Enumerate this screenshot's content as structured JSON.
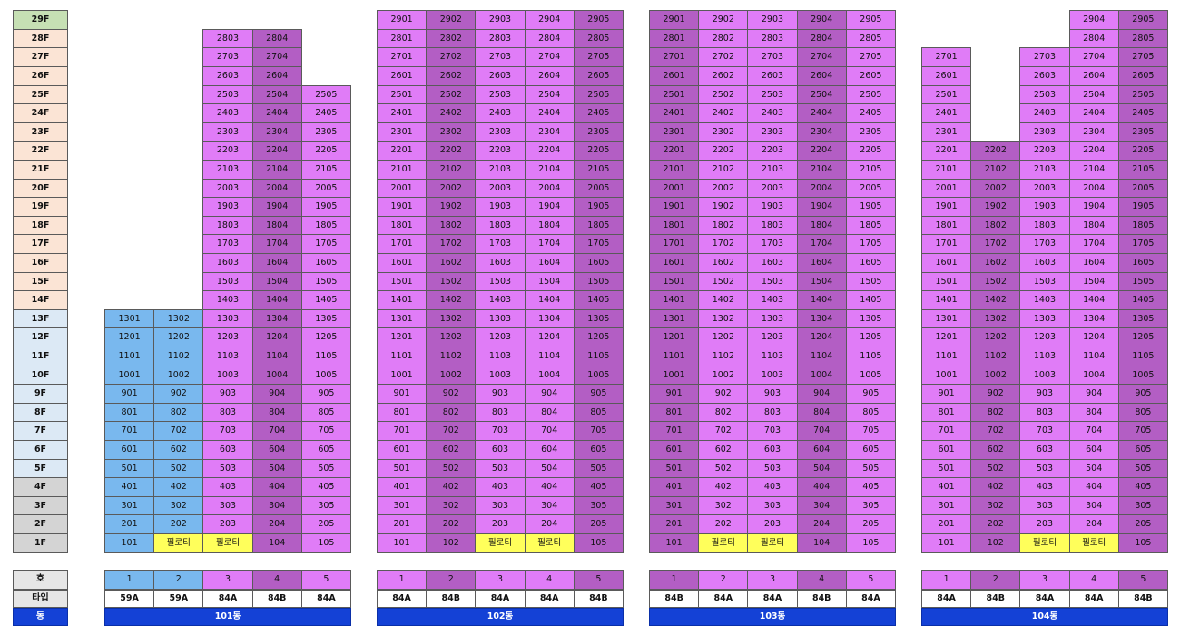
{
  "floors": [
    "1F",
    "2F",
    "3F",
    "4F",
    "5F",
    "6F",
    "7F",
    "8F",
    "9F",
    "10F",
    "11F",
    "12F",
    "13F",
    "14F",
    "15F",
    "16F",
    "17F",
    "18F",
    "19F",
    "20F",
    "21F",
    "22F",
    "23F",
    "24F",
    "25F",
    "26F",
    "27F",
    "28F",
    "29F"
  ],
  "floor_colors": {
    "low": "#d4d4d4",
    "mid": "#dce9f5",
    "high": "#fbe4d5",
    "top": "#c6e0b4"
  },
  "unit_colors": {
    "light": "#e07cf7",
    "dark": "#b35ec4",
    "blue": "#79b8ee",
    "piloti": "#ffff5b",
    "dong": "#1441d6"
  },
  "row_labels": {
    "ho": "호",
    "type": "타입",
    "dong": "동"
  },
  "buildings": [
    {
      "dong_label": "101동",
      "lines": [
        {
          "ho": "1",
          "type": "59A",
          "color": "blue",
          "top": 13,
          "piloti": false
        },
        {
          "ho": "2",
          "type": "59A",
          "color": "blue",
          "top": 13,
          "piloti": true
        },
        {
          "ho": "3",
          "type": "84A",
          "color": "light",
          "top": 28,
          "piloti": true
        },
        {
          "ho": "4",
          "type": "84B",
          "color": "dark",
          "top": 28,
          "piloti": false
        },
        {
          "ho": "5",
          "type": "84A",
          "color": "light",
          "top": 25,
          "piloti": false
        }
      ]
    },
    {
      "dong_label": "102동",
      "lines": [
        {
          "ho": "1",
          "type": "84A",
          "color": "light",
          "top": 29,
          "piloti": false
        },
        {
          "ho": "2",
          "type": "84B",
          "color": "dark",
          "top": 29,
          "piloti": false
        },
        {
          "ho": "3",
          "type": "84A",
          "color": "light",
          "top": 29,
          "piloti": true
        },
        {
          "ho": "4",
          "type": "84A",
          "color": "light",
          "top": 29,
          "piloti": true
        },
        {
          "ho": "5",
          "type": "84B",
          "color": "dark",
          "top": 29,
          "piloti": false
        }
      ]
    },
    {
      "dong_label": "103동",
      "lines": [
        {
          "ho": "1",
          "type": "84B",
          "color": "dark",
          "top": 29,
          "piloti": false
        },
        {
          "ho": "2",
          "type": "84A",
          "color": "light",
          "top": 29,
          "piloti": true
        },
        {
          "ho": "3",
          "type": "84A",
          "color": "light",
          "top": 29,
          "piloti": true
        },
        {
          "ho": "4",
          "type": "84B",
          "color": "dark",
          "top": 29,
          "piloti": false
        },
        {
          "ho": "5",
          "type": "84A",
          "color": "light",
          "top": 29,
          "piloti": false
        }
      ]
    },
    {
      "dong_label": "104동",
      "lines": [
        {
          "ho": "1",
          "type": "84A",
          "color": "light",
          "top": 27,
          "piloti": false
        },
        {
          "ho": "2",
          "type": "84B",
          "color": "dark",
          "top": 22,
          "piloti": false
        },
        {
          "ho": "3",
          "type": "84A",
          "color": "light",
          "top": 27,
          "piloti": true
        },
        {
          "ho": "4",
          "type": "84A",
          "color": "light",
          "top": 29,
          "piloti": true
        },
        {
          "ho": "5",
          "type": "84B",
          "color": "dark",
          "top": 29,
          "piloti": false
        }
      ]
    }
  ],
  "piloti_label": "필로티"
}
